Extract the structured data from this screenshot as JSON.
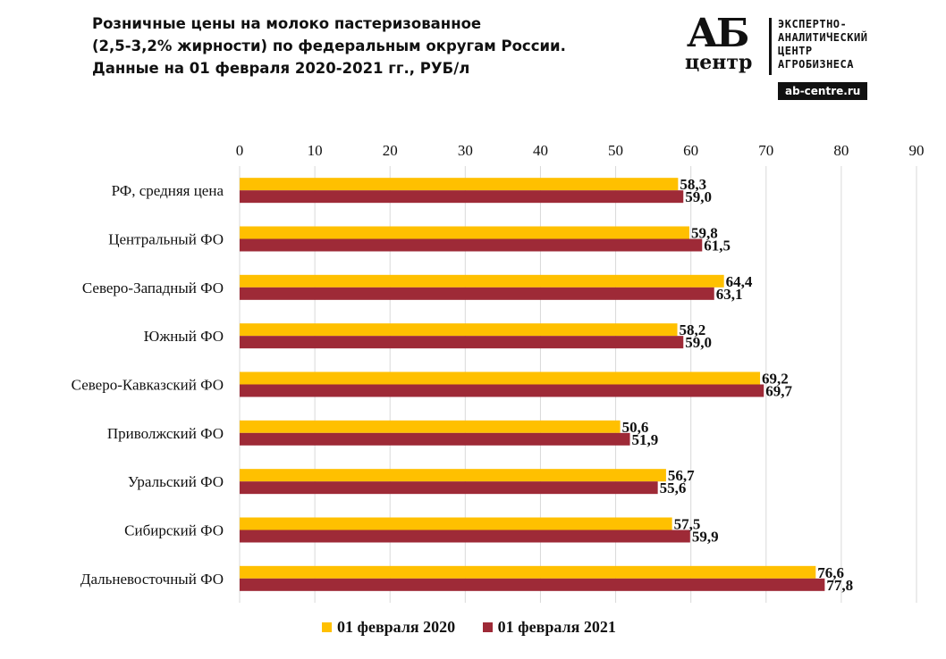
{
  "title": {
    "line1": "Розничные цены на молоко пастеризованное",
    "line2": "(2,5-3,2% жирности) по федеральным округам России.",
    "line3": "Данные на 01 февраля 2020-2021 гг., РУБ/л"
  },
  "logo": {
    "ab": "АБ",
    "centr": "центр",
    "text_lines": [
      "ЭКСПЕРТНО-",
      "АНАЛИТИЧЕСКИЙ",
      "ЦЕНТР",
      "АГРОБИЗНЕСА"
    ],
    "url": "ab-centre.ru"
  },
  "colors": {
    "series2020": "#FFC000",
    "series2021": "#9E2A37",
    "grid": "#D9D9D9",
    "text": "#111111"
  },
  "chart_data": {
    "type": "bar",
    "orientation": "horizontal",
    "title": "Розничные цены на молоко пастеризованное (2,5-3,2% жирности) по федеральным округам России. Данные на 01 февраля 2020-2021 гг., РУБ/л",
    "categories": [
      "РФ, средняя цена",
      "Центральный ФО",
      "Северо-Западный ФО",
      "Южный ФО",
      "Северо-Кавказский ФО",
      "Приволжский ФО",
      "Уральский ФО",
      "Сибирский ФО",
      "Дальневосточный ФО"
    ],
    "series": [
      {
        "name": "01 февраля 2020",
        "values": [
          58.3,
          59.8,
          64.4,
          58.2,
          69.2,
          50.6,
          56.7,
          57.5,
          76.6
        ],
        "labels": [
          "58,3",
          "59,8",
          "64,4",
          "58,2",
          "69,2",
          "50,6",
          "56,7",
          "57,5",
          "76,6"
        ]
      },
      {
        "name": "01 февраля 2021",
        "values": [
          59.0,
          61.5,
          63.1,
          59.0,
          69.7,
          51.9,
          55.6,
          59.9,
          77.8
        ],
        "labels": [
          "59,0",
          "61,5",
          "63,1",
          "59,0",
          "69,7",
          "51,9",
          "55,6",
          "59,9",
          "77,8"
        ]
      }
    ],
    "xlim": [
      0,
      90
    ],
    "xticks": [
      0,
      10,
      20,
      30,
      40,
      50,
      60,
      70,
      80,
      90
    ],
    "xtick_labels": [
      "0",
      "10",
      "20",
      "30",
      "40",
      "50",
      "60",
      "70",
      "80",
      "90"
    ],
    "axis_position": "top",
    "grid": true,
    "legend_position": "bottom"
  }
}
